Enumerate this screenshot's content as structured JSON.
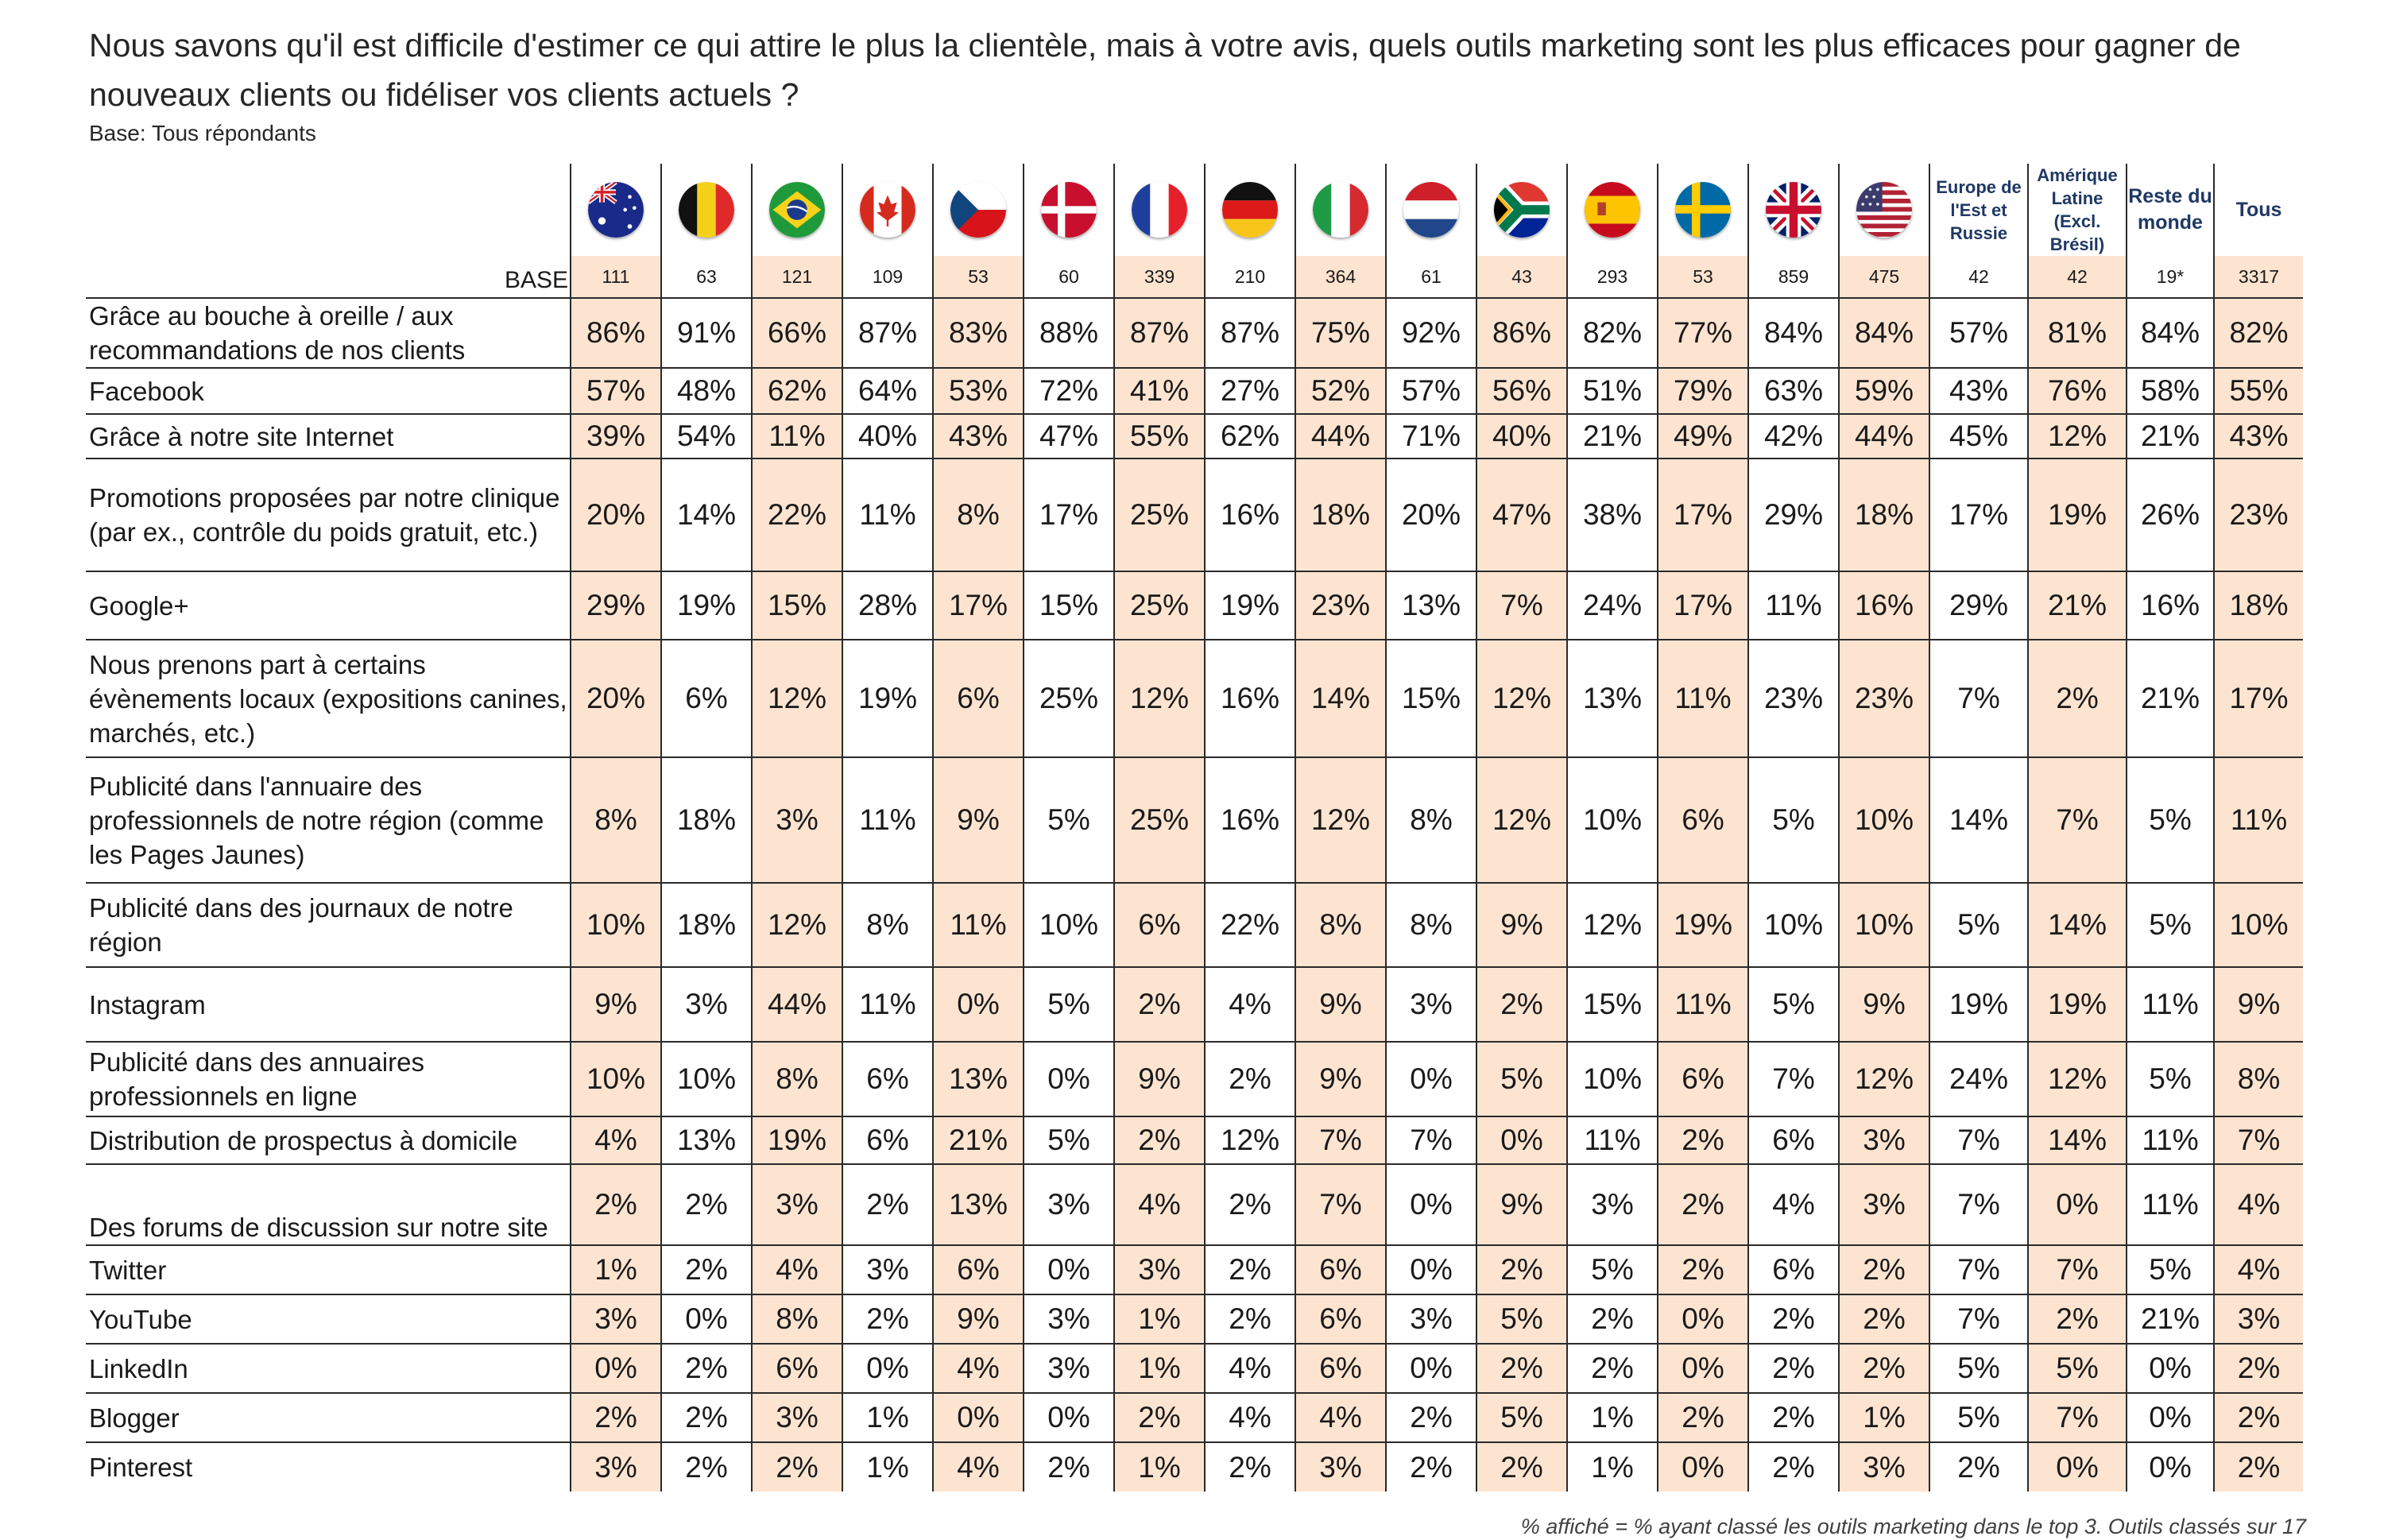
{
  "title": "Nous savons qu'il est difficile d'estimer ce qui attire le plus la clientèle, mais à votre avis, quels outils marketing sont les plus efficaces pour gagner de nouveaux clients ou fidéliser vos clients actuels ?",
  "base_note": "Base: Tous répondants",
  "base_label": "BASE",
  "footnote": "% affiché = % ayant classé les outils marketing dans le top 3. Outils classés sur 17",
  "columns": [
    {
      "flag": "australia-flag",
      "base": "111"
    },
    {
      "flag": "belgium-flag",
      "base": "63"
    },
    {
      "flag": "brazil-flag",
      "base": "121"
    },
    {
      "flag": "canada-flag",
      "base": "109"
    },
    {
      "flag": "czech-republic-flag",
      "base": "53"
    },
    {
      "flag": "denmark-flag",
      "base": "60"
    },
    {
      "flag": "france-flag",
      "base": "339"
    },
    {
      "flag": "germany-flag",
      "base": "210"
    },
    {
      "flag": "italy-flag",
      "base": "364"
    },
    {
      "flag": "netherlands-flag",
      "base": "61"
    },
    {
      "flag": "south-africa-flag",
      "base": "43"
    },
    {
      "flag": "spain-flag",
      "base": "293"
    },
    {
      "flag": "sweden-flag",
      "base": "53"
    },
    {
      "flag": "united-kingdom-flag",
      "base": "859"
    },
    {
      "flag": "united-states-flag",
      "base": "475"
    },
    {
      "label": "Europe de l'Est et Russie",
      "base": "42"
    },
    {
      "label": "Amérique Latine (Excl. Brésil)",
      "base": "42"
    },
    {
      "label": "Reste du monde",
      "base": "19*"
    },
    {
      "label": "Tous",
      "base": "3317"
    }
  ],
  "rows": [
    {
      "label": "Grâce au bouche à oreille / aux recommandations de nos clients",
      "values": [
        "86%",
        "91%",
        "66%",
        "87%",
        "83%",
        "88%",
        "87%",
        "87%",
        "75%",
        "92%",
        "86%",
        "82%",
        "77%",
        "84%",
        "84%",
        "57%",
        "81%",
        "84%",
        "82%"
      ]
    },
    {
      "label": "Facebook",
      "values": [
        "57%",
        "48%",
        "62%",
        "64%",
        "53%",
        "72%",
        "41%",
        "27%",
        "52%",
        "57%",
        "56%",
        "51%",
        "79%",
        "63%",
        "59%",
        "43%",
        "76%",
        "58%",
        "55%"
      ]
    },
    {
      "label": "Grâce à notre site Internet",
      "values": [
        "39%",
        "54%",
        "11%",
        "40%",
        "43%",
        "47%",
        "55%",
        "62%",
        "44%",
        "71%",
        "40%",
        "21%",
        "49%",
        "42%",
        "44%",
        "45%",
        "12%",
        "21%",
        "43%"
      ]
    },
    {
      "label": "Promotions proposées par notre clinique (par ex., contrôle du poids gratuit, etc.)",
      "values": [
        "20%",
        "14%",
        "22%",
        "11%",
        "8%",
        "17%",
        "25%",
        "16%",
        "18%",
        "20%",
        "47%",
        "38%",
        "17%",
        "29%",
        "18%",
        "17%",
        "19%",
        "26%",
        "23%"
      ]
    },
    {
      "label": "Google+",
      "values": [
        "29%",
        "19%",
        "15%",
        "28%",
        "17%",
        "15%",
        "25%",
        "19%",
        "23%",
        "13%",
        "7%",
        "24%",
        "17%",
        "11%",
        "16%",
        "29%",
        "21%",
        "16%",
        "18%"
      ]
    },
    {
      "label": "Nous prenons part à certains évènements locaux (expositions canines, marchés, etc.)",
      "values": [
        "20%",
        "6%",
        "12%",
        "19%",
        "6%",
        "25%",
        "12%",
        "16%",
        "14%",
        "15%",
        "12%",
        "13%",
        "11%",
        "23%",
        "23%",
        "7%",
        "2%",
        "21%",
        "17%"
      ]
    },
    {
      "label": "Publicité dans l'annuaire des professionnels de notre région (comme les Pages Jaunes)",
      "values": [
        "8%",
        "18%",
        "3%",
        "11%",
        "9%",
        "5%",
        "25%",
        "16%",
        "12%",
        "8%",
        "12%",
        "10%",
        "6%",
        "5%",
        "10%",
        "14%",
        "7%",
        "5%",
        "11%"
      ]
    },
    {
      "label": "Publicité dans des journaux de notre région",
      "values": [
        "10%",
        "18%",
        "12%",
        "8%",
        "11%",
        "10%",
        "6%",
        "22%",
        "8%",
        "8%",
        "9%",
        "12%",
        "19%",
        "10%",
        "10%",
        "5%",
        "14%",
        "5%",
        "10%"
      ]
    },
    {
      "label": "Instagram",
      "values": [
        "9%",
        "3%",
        "44%",
        "11%",
        "0%",
        "5%",
        "2%",
        "4%",
        "9%",
        "3%",
        "2%",
        "15%",
        "11%",
        "5%",
        "9%",
        "19%",
        "19%",
        "11%",
        "9%"
      ]
    },
    {
      "label": "Publicité dans des annuaires professionnels en ligne",
      "values": [
        "10%",
        "10%",
        "8%",
        "6%",
        "13%",
        "0%",
        "9%",
        "2%",
        "9%",
        "0%",
        "5%",
        "10%",
        "6%",
        "7%",
        "12%",
        "24%",
        "12%",
        "5%",
        "8%"
      ]
    },
    {
      "label": "Distribution de prospectus à domicile",
      "values": [
        "4%",
        "13%",
        "19%",
        "6%",
        "21%",
        "5%",
        "2%",
        "12%",
        "7%",
        "7%",
        "0%",
        "11%",
        "2%",
        "6%",
        "3%",
        "7%",
        "14%",
        "11%",
        "7%"
      ]
    },
    {
      "label": "Des forums de discussion sur notre site",
      "values": [
        "2%",
        "2%",
        "3%",
        "2%",
        "13%",
        "3%",
        "4%",
        "2%",
        "7%",
        "0%",
        "9%",
        "3%",
        "2%",
        "4%",
        "3%",
        "7%",
        "0%",
        "11%",
        "4%"
      ]
    },
    {
      "label": "Twitter",
      "values": [
        "1%",
        "2%",
        "4%",
        "3%",
        "6%",
        "0%",
        "3%",
        "2%",
        "6%",
        "0%",
        "2%",
        "5%",
        "2%",
        "6%",
        "2%",
        "7%",
        "7%",
        "5%",
        "4%"
      ]
    },
    {
      "label": "YouTube",
      "values": [
        "3%",
        "0%",
        "8%",
        "2%",
        "9%",
        "3%",
        "1%",
        "2%",
        "6%",
        "3%",
        "5%",
        "2%",
        "0%",
        "2%",
        "2%",
        "7%",
        "2%",
        "21%",
        "3%"
      ]
    },
    {
      "label": "LinkedIn",
      "values": [
        "0%",
        "2%",
        "6%",
        "0%",
        "4%",
        "3%",
        "1%",
        "4%",
        "6%",
        "0%",
        "2%",
        "2%",
        "0%",
        "2%",
        "2%",
        "5%",
        "5%",
        "0%",
        "2%"
      ]
    },
    {
      "label": "Blogger",
      "values": [
        "2%",
        "2%",
        "3%",
        "1%",
        "0%",
        "0%",
        "2%",
        "4%",
        "4%",
        "2%",
        "5%",
        "1%",
        "2%",
        "2%",
        "1%",
        "5%",
        "7%",
        "0%",
        "2%"
      ]
    },
    {
      "label": "Pinterest",
      "values": [
        "3%",
        "2%",
        "2%",
        "1%",
        "4%",
        "2%",
        "1%",
        "2%",
        "3%",
        "2%",
        "2%",
        "1%",
        "0%",
        "2%",
        "3%",
        "2%",
        "0%",
        "0%",
        "2%"
      ]
    }
  ]
}
